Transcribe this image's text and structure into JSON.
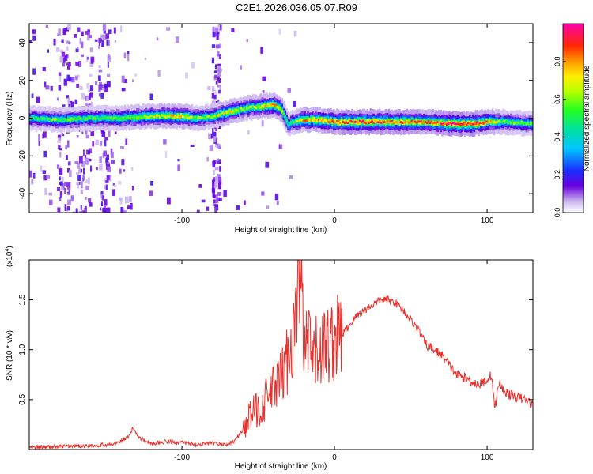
{
  "title": "C2E1.2026.036.05.07.R09",
  "chart_data": [
    {
      "type": "heatmap",
      "xlabel": "Height of straight line (km)",
      "ylabel": "Frequency (Hz)",
      "xlim": [
        -200,
        130
      ],
      "ylim": [
        -50,
        50
      ],
      "xticks": [
        -100,
        0,
        100
      ],
      "yticks": [
        -40,
        -20,
        0,
        20,
        40
      ],
      "colorbar": {
        "label": "Normalized spectral amplitude",
        "range": [
          0.0,
          1.0
        ],
        "ticks": [
          0.0,
          0.2,
          0.4,
          0.6,
          0.8
        ]
      },
      "ridge": {
        "x": [
          -200,
          -180,
          -160,
          -140,
          -120,
          -100,
          -90,
          -80,
          -70,
          -60,
          -50,
          -40,
          -35,
          -30,
          -28,
          -20,
          -10,
          0,
          20,
          40,
          60,
          75,
          90,
          100,
          110,
          130
        ],
        "y": [
          0,
          -1,
          0,
          0,
          1,
          1,
          0,
          1,
          3,
          5,
          6,
          7,
          5,
          -4,
          -2,
          -1,
          -1,
          -2,
          -2,
          -2,
          -2,
          -3,
          -3,
          -2,
          -2,
          -3
        ],
        "peak_amplitude": [
          0.5,
          0.6,
          0.55,
          0.6,
          0.7,
          0.8,
          0.6,
          0.65,
          0.75,
          0.6,
          0.7,
          0.85,
          0.7,
          0.5,
          0.55,
          0.8,
          0.85,
          0.9,
          0.95,
          0.9,
          0.85,
          1.0,
          1.0,
          0.85,
          0.6,
          0.55
        ]
      }
    },
    {
      "type": "line",
      "xlabel": "Height of straight line (km)",
      "ylabel": "SNR (10 * v/v)",
      "y_multiplier": "(x10",
      "y_multiplier_exp": "4",
      "y_multiplier_close": ")",
      "xlim": [
        -200,
        130
      ],
      "ylim": [
        0,
        1.9
      ],
      "xticks": [
        -100,
        0,
        100
      ],
      "yticks": [
        0.5,
        1.0,
        1.5
      ],
      "ytick_labels": [
        "0.5",
        "1.0",
        "1.5"
      ],
      "series": [
        {
          "color": "#e8302c",
          "x": [
            -200,
            -180,
            -160,
            -145,
            -135,
            -132,
            -128,
            -120,
            -110,
            -100,
            -90,
            -80,
            -70,
            -65,
            -60,
            -55,
            -50,
            -45,
            -40,
            -35,
            -30,
            -25,
            -23,
            -21,
            -20,
            -18,
            -15,
            -10,
            -5,
            0,
            5,
            10,
            15,
            20,
            25,
            30,
            35,
            40,
            45,
            50,
            55,
            60,
            65,
            70,
            75,
            80,
            85,
            90,
            95,
            100,
            103,
            105,
            108,
            110,
            115,
            120,
            125,
            130
          ],
          "y": [
            0.02,
            0.03,
            0.04,
            0.05,
            0.12,
            0.22,
            0.12,
            0.06,
            0.08,
            0.07,
            0.05,
            0.06,
            0.05,
            0.09,
            0.2,
            0.35,
            0.4,
            0.5,
            0.6,
            0.7,
            0.95,
            1.3,
            1.9,
            1.4,
            0.9,
            1.1,
            0.9,
            1.0,
            1.05,
            1.1,
            1.15,
            1.25,
            1.35,
            1.4,
            1.45,
            1.5,
            1.5,
            1.47,
            1.4,
            1.3,
            1.2,
            1.05,
            1.0,
            0.95,
            0.85,
            0.75,
            0.72,
            0.68,
            0.65,
            0.7,
            0.75,
            0.4,
            0.68,
            0.6,
            0.55,
            0.52,
            0.5,
            0.45
          ]
        }
      ]
    }
  ]
}
